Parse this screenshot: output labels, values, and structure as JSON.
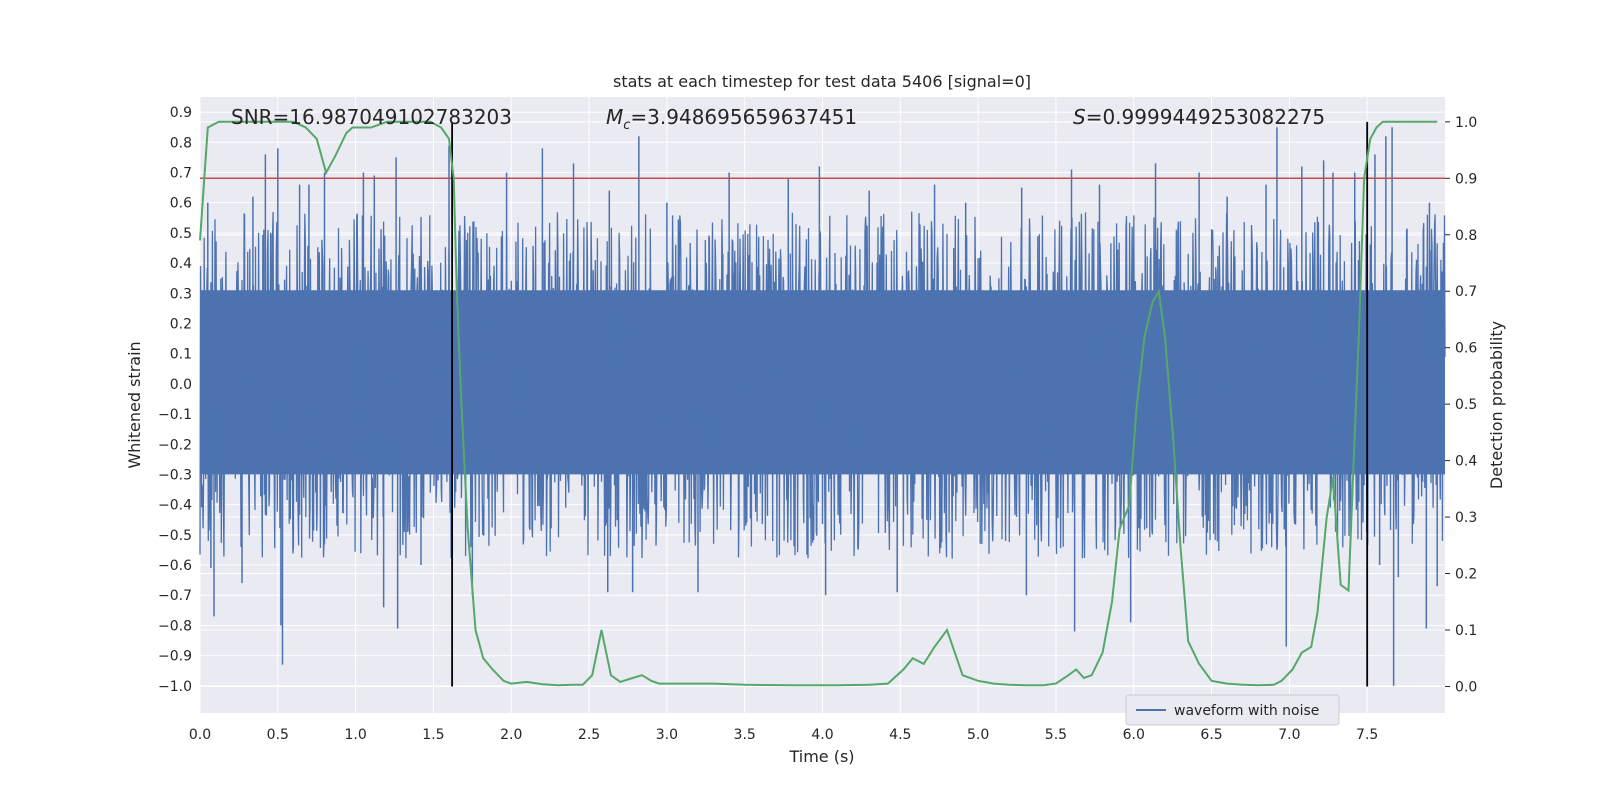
{
  "chart_data": {
    "type": "line",
    "title": "stats at each timestep for test data 5406 [signal=0]",
    "xlabel": "Time (s)",
    "ylabel": "Whitened strain",
    "y2label": "Detection probability",
    "xlim": [
      0.0,
      8.0
    ],
    "ylim": [
      -1.09,
      0.95
    ],
    "y2lim": [
      -0.047,
      1.044
    ],
    "xticks": [
      0.0,
      0.5,
      1.0,
      1.5,
      2.0,
      2.5,
      3.0,
      3.5,
      4.0,
      4.5,
      5.0,
      5.5,
      6.0,
      6.5,
      7.0,
      7.5
    ],
    "xtick_labels": [
      "0.0",
      "0.5",
      "1.0",
      "1.5",
      "2.0",
      "2.5",
      "3.0",
      "3.5",
      "4.0",
      "4.5",
      "5.0",
      "5.5",
      "6.0",
      "6.5",
      "7.0",
      "7.5"
    ],
    "yticks": [
      0.9,
      0.8,
      0.7,
      0.6,
      0.5,
      0.4,
      0.3,
      0.2,
      0.1,
      0.0,
      -0.1,
      -0.2,
      -0.3,
      -0.4,
      -0.5,
      -0.6,
      -0.7,
      -0.8,
      -0.9,
      -1.0
    ],
    "ytick_labels": [
      "0.9",
      "0.8",
      "0.7",
      "0.6",
      "0.5",
      "0.4",
      "0.3",
      "0.2",
      "0.1",
      "0.0",
      "−0.1",
      "−0.2",
      "−0.3",
      "−0.4",
      "−0.5",
      "−0.6",
      "−0.7",
      "−0.8",
      "−0.9",
      "−1.0"
    ],
    "y2ticks": [
      1.0,
      0.9,
      0.8,
      0.7,
      0.6,
      0.5,
      0.4,
      0.3,
      0.2,
      0.1,
      0.0
    ],
    "y2tick_labels": [
      "1.0",
      "0.9",
      "0.8",
      "0.7",
      "0.6",
      "0.5",
      "0.4",
      "0.3",
      "0.2",
      "0.1",
      "0.0"
    ],
    "grid": true,
    "annotations": {
      "snr": "SNR=16.987049102783203",
      "mc_symbol": "M",
      "mc_sub": "c",
      "mc_value": "=3.948695659637451",
      "s_symbol": "S",
      "s_value": "=0.9999449253082275"
    },
    "threshold_y2": 0.9,
    "vertical_lines_x": [
      1.62,
      7.5
    ],
    "legend": {
      "label": "waveform with noise",
      "position": "lower-right"
    },
    "colors": {
      "waveform": "#4c72b0",
      "probability": "#55a868",
      "threshold": "#c44e52",
      "vlines": "#000000",
      "background": "#eaeaf2",
      "grid": "#ffffff"
    },
    "series": [
      {
        "name": "waveform with noise",
        "kind": "noise",
        "core_band": [
          -0.3,
          0.31
        ],
        "typical_peak": [
          0.4,
          0.5
        ],
        "spikes": [
          [
            0.05,
            0.6
          ],
          [
            0.07,
            -0.61
          ],
          [
            0.09,
            -0.77
          ],
          [
            0.27,
            -0.66
          ],
          [
            0.34,
            0.62
          ],
          [
            0.42,
            0.76
          ],
          [
            0.5,
            0.78
          ],
          [
            0.52,
            -0.8
          ],
          [
            0.53,
            -0.93
          ],
          [
            0.64,
            0.66
          ],
          [
            0.7,
            0.66
          ],
          [
            0.8,
            0.7
          ],
          [
            1.05,
            0.7
          ],
          [
            1.12,
            0.69
          ],
          [
            1.18,
            -0.74
          ],
          [
            1.26,
            0.75
          ],
          [
            1.27,
            -0.81
          ],
          [
            1.42,
            -0.6
          ],
          [
            1.6,
            0.79
          ],
          [
            1.62,
            -0.6
          ],
          [
            1.75,
            -0.7
          ],
          [
            1.97,
            0.7
          ],
          [
            2.2,
            0.78
          ],
          [
            2.4,
            0.73
          ],
          [
            2.62,
            -0.69
          ],
          [
            2.63,
            0.64
          ],
          [
            2.78,
            -0.69
          ],
          [
            2.82,
            0.82
          ],
          [
            3.0,
            0.6
          ],
          [
            3.2,
            -0.69
          ],
          [
            3.4,
            0.7
          ],
          [
            3.78,
            0.68
          ],
          [
            3.98,
            0.72
          ],
          [
            4.02,
            -0.7
          ],
          [
            4.3,
            0.64
          ],
          [
            4.48,
            -0.69
          ],
          [
            4.72,
            0.66
          ],
          [
            4.92,
            0.6
          ],
          [
            5.28,
            0.65
          ],
          [
            5.31,
            -0.7
          ],
          [
            5.6,
            0.71
          ],
          [
            5.62,
            -0.82
          ],
          [
            5.78,
            0.66
          ],
          [
            5.98,
            -0.79
          ],
          [
            6.14,
            0.73
          ],
          [
            6.42,
            0.7
          ],
          [
            6.6,
            0.62
          ],
          [
            6.85,
            0.66
          ],
          [
            6.92,
            0.85
          ],
          [
            6.98,
            -0.87
          ],
          [
            7.08,
            0.72
          ],
          [
            7.22,
            0.74
          ],
          [
            7.28,
            0.7
          ],
          [
            7.42,
            0.7
          ],
          [
            7.55,
            0.76
          ],
          [
            7.58,
            -0.6
          ],
          [
            7.62,
            0.82
          ],
          [
            7.66,
            0.85
          ],
          [
            7.67,
            -1.0
          ],
          [
            7.7,
            -0.64
          ],
          [
            7.88,
            -0.81
          ],
          [
            7.9,
            0.6
          ],
          [
            7.95,
            -0.67
          ]
        ]
      },
      {
        "name": "detection probability",
        "axis": "y2",
        "x": [
          0.0,
          0.05,
          0.12,
          0.2,
          0.3,
          0.4,
          0.5,
          0.6,
          0.68,
          0.75,
          0.81,
          0.87,
          0.94,
          0.98,
          1.04,
          1.1,
          1.2,
          1.3,
          1.4,
          1.48,
          1.55,
          1.6,
          1.63,
          1.65,
          1.68,
          1.72,
          1.77,
          1.82,
          1.88,
          1.95,
          2.0,
          2.1,
          2.2,
          2.3,
          2.4,
          2.46,
          2.52,
          2.58,
          2.64,
          2.7,
          2.78,
          2.84,
          2.9,
          2.95,
          3.0,
          3.1,
          3.2,
          3.3,
          3.5,
          3.8,
          4.1,
          4.3,
          4.42,
          4.52,
          4.58,
          4.65,
          4.72,
          4.8,
          4.85,
          4.9,
          5.0,
          5.1,
          5.2,
          5.3,
          5.42,
          5.5,
          5.58,
          5.63,
          5.68,
          5.73,
          5.8,
          5.86,
          5.91,
          5.97,
          6.02,
          6.07,
          6.12,
          6.16,
          6.2,
          6.25,
          6.3,
          6.35,
          6.42,
          6.5,
          6.6,
          6.7,
          6.8,
          6.9,
          6.95,
          7.02,
          7.08,
          7.14,
          7.18,
          7.24,
          7.28,
          7.33,
          7.38,
          7.45,
          7.48,
          7.52,
          7.56,
          7.6,
          7.64,
          7.68,
          7.75,
          7.85,
          7.95
        ],
        "y": [
          0.79,
          0.99,
          1.0,
          1.0,
          1.0,
          1.0,
          1.0,
          1.0,
          0.99,
          0.97,
          0.91,
          0.94,
          0.98,
          0.99,
          0.99,
          0.99,
          1.0,
          1.0,
          1.0,
          1.0,
          0.99,
          0.97,
          0.9,
          0.7,
          0.5,
          0.28,
          0.1,
          0.05,
          0.03,
          0.01,
          0.005,
          0.008,
          0.004,
          0.002,
          0.003,
          0.003,
          0.02,
          0.1,
          0.02,
          0.008,
          0.015,
          0.02,
          0.01,
          0.005,
          0.005,
          0.005,
          0.005,
          0.005,
          0.003,
          0.002,
          0.002,
          0.003,
          0.005,
          0.03,
          0.05,
          0.04,
          0.07,
          0.1,
          0.06,
          0.02,
          0.01,
          0.005,
          0.003,
          0.002,
          0.002,
          0.005,
          0.02,
          0.03,
          0.015,
          0.02,
          0.06,
          0.15,
          0.28,
          0.32,
          0.5,
          0.62,
          0.68,
          0.7,
          0.62,
          0.45,
          0.25,
          0.08,
          0.04,
          0.01,
          0.005,
          0.003,
          0.002,
          0.003,
          0.01,
          0.03,
          0.06,
          0.07,
          0.13,
          0.3,
          0.37,
          0.18,
          0.17,
          0.65,
          0.9,
          0.97,
          0.99,
          1.0,
          1.0,
          1.0,
          1.0,
          1.0,
          1.0
        ]
      }
    ]
  }
}
